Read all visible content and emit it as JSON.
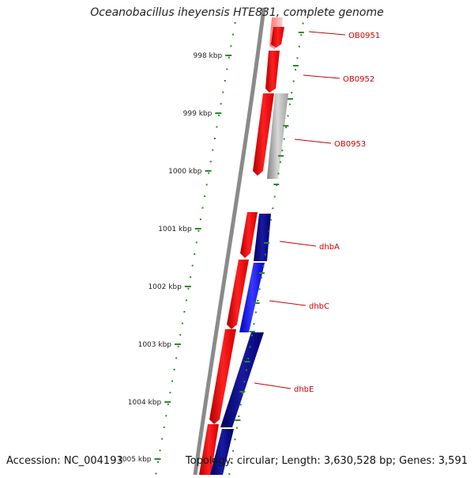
{
  "title": "Oceanobacillus iheyensis HTE831, complete genome",
  "footer": {
    "accession": "Accession: NC_004193",
    "summary": "Topology: circular; Length: 3,630,528 bp; Genes: 3,591"
  },
  "colors": {
    "backbone": "#8a8a8a",
    "ticks": "#2a8a2a",
    "tick_label": "#222222",
    "gene_label": "#cc0000",
    "red_block": "#e60000",
    "blue_block": "#0a0a8c",
    "bright_blue": "#1e1eff",
    "grey_block": "#9a9a9a",
    "pink_block": "#ff9a9a",
    "navy_small": "#202070"
  },
  "kbp_ticks": [
    {
      "label": "998 kbp",
      "value": 998
    },
    {
      "label": "999 kbp",
      "value": 999
    },
    {
      "label": "1000 kbp",
      "value": 1000
    },
    {
      "label": "1001 kbp",
      "value": 1001
    },
    {
      "label": "1002 kbp",
      "value": 1002
    },
    {
      "label": "1003 kbp",
      "value": 1003
    },
    {
      "label": "1004 kbp",
      "value": 1004
    },
    {
      "label": "1005 kbp",
      "value": 1005
    }
  ],
  "gene_labels": [
    {
      "name": "OB0951"
    },
    {
      "name": "OB0952"
    },
    {
      "name": "OB0953"
    },
    {
      "name": "dhbA"
    },
    {
      "name": "dhbC"
    },
    {
      "name": "dhbE"
    }
  ]
}
